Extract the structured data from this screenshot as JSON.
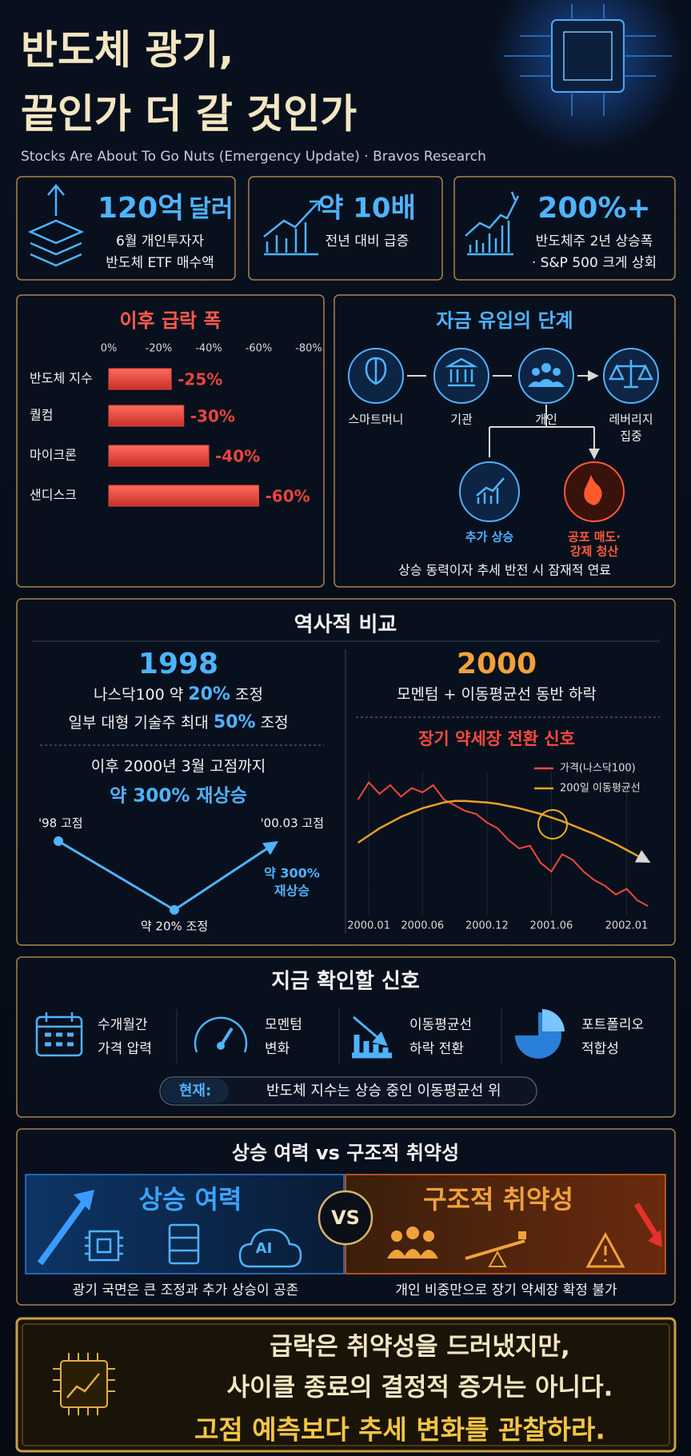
{
  "header": {
    "title_lines": [
      "반도체 광기,",
      "끝인가 더 갈 것인가"
    ],
    "subtitle": "Stocks Are About To Go Nuts (Emergency Update) · Bravos Research"
  },
  "stats": [
    {
      "value": "120억",
      "unit": "달러",
      "lines": [
        "6월 개인투자자",
        "반도체 ETF 매수액"
      ]
    },
    {
      "value": "약 10배",
      "lines": [
        "전년 대비 급증"
      ]
    },
    {
      "value": "200%+",
      "lines": [
        "반도체주 2년 상승폭",
        "· S&P 500 크게 상회"
      ]
    }
  ],
  "drawdown_chart": {
    "type": "bar",
    "title": "이후 급락 폭",
    "categories": [
      "반도체 지수",
      "퀄컴",
      "마이크론",
      "샌디스크"
    ],
    "values": [
      -25,
      -30,
      -40,
      -60
    ],
    "value_labels": [
      "-25%",
      "-30%",
      "-40%",
      "-60%"
    ],
    "xlim": [
      0,
      -80
    ],
    "xticks": [
      {
        "value": 0,
        "label": "0%"
      },
      {
        "value": -20,
        "label": "-20%"
      },
      {
        "value": -40,
        "label": "-40%"
      },
      {
        "value": -60,
        "label": "-60%"
      },
      {
        "value": -80,
        "label": "-80%"
      }
    ],
    "color": "#e8453c"
  },
  "flow": {
    "title": "자금 유입의 단계",
    "stages": [
      [
        "스마트머니"
      ],
      [
        "기관"
      ],
      [
        "개인"
      ],
      [
        "레버리지",
        "집중"
      ]
    ],
    "outcomes": [
      [
        "추가 상승"
      ],
      [
        "공포 매도·",
        "강제 청산"
      ]
    ],
    "caption": "상승 동력이자 추세 반전 시 잠재적 연료"
  },
  "history": {
    "title": "역사적 비교",
    "left": {
      "year": "1998",
      "line1": [
        "나스닥100 약 ",
        "20%",
        " 조정"
      ],
      "line2": [
        "일부 대형 기술주 최대 ",
        "50%",
        " 조정"
      ],
      "line3": "이후 2000년 3월 고점까지",
      "line4": "약 300% 재상승",
      "v_labels": {
        "start": "'98 고점",
        "end": "'00.03 고점",
        "trough": "약 20% 조정",
        "rise": [
          "약 300%",
          "재상승"
        ]
      }
    },
    "right": {
      "year": "2000",
      "line1": "모멘텀 + 이동평균선 동반 하락",
      "signal": "장기 약세장 전환 신호"
    }
  },
  "trend_chart": {
    "type": "line",
    "x": [
      -1,
      0,
      1,
      2,
      3,
      4,
      5,
      6,
      7,
      8,
      9,
      10,
      11,
      12,
      13,
      14,
      15,
      16,
      17,
      18,
      19,
      20,
      21,
      22,
      23,
      24,
      25,
      26
    ],
    "series": [
      {
        "name": "가격(나스닥100)",
        "color": "#f04a36",
        "values": [
          80,
          92,
          84,
          90,
          82,
          88,
          85,
          90,
          80,
          76,
          72,
          70,
          64,
          60,
          52,
          46,
          48,
          36,
          30,
          42,
          38,
          30,
          24,
          20,
          14,
          18,
          10,
          6
        ]
      },
      {
        "name": "200일 이동평균선",
        "color": "#f0a020",
        "values": [
          50,
          55,
          60,
          64,
          68,
          71,
          74,
          76,
          78,
          79,
          79,
          78.5,
          78,
          77,
          75.5,
          74,
          72,
          70,
          67.5,
          65,
          62,
          59,
          56,
          52.5,
          49,
          45,
          41,
          37
        ]
      }
    ],
    "xlim": [
      -1.2,
      26.2
    ],
    "ylim": [
      0,
      100
    ],
    "xticks": [
      {
        "value": 0,
        "label": "2000.01"
      },
      {
        "value": 5,
        "label": "2000.06"
      },
      {
        "value": 11,
        "label": "2000.12"
      },
      {
        "value": 17,
        "label": "2001.06"
      },
      {
        "value": 24,
        "label": "2002.01"
      }
    ]
  },
  "signals": {
    "title": "지금 확인할 신호",
    "items": [
      [
        "수개월간",
        "가격 압력"
      ],
      [
        "모멘텀",
        "변화"
      ],
      [
        "이동평균선",
        "하락 전환"
      ],
      [
        "포트폴리오",
        "적합성"
      ]
    ],
    "current_label": "현재:",
    "current_text": "반도체 지수는 상승 중인 이동평균선 위"
  },
  "versus": {
    "title": "상승 여력 vs 구조적 취약성",
    "left": "상승 여력",
    "vs": "VS",
    "right": "구조적 취약성",
    "ai": "AI",
    "left_caption": "광기 국면은 큰 조정과 추가 상승이 공존",
    "right_caption": "개인 비중만으로 장기 약세장 확정 불가"
  },
  "conclusion": [
    "급락은 취약성을 드러냈지만,",
    "사이클 종료의 결정적 증거는 아니다.",
    "고점 예측보다 추세 변화를 관찰하라."
  ]
}
